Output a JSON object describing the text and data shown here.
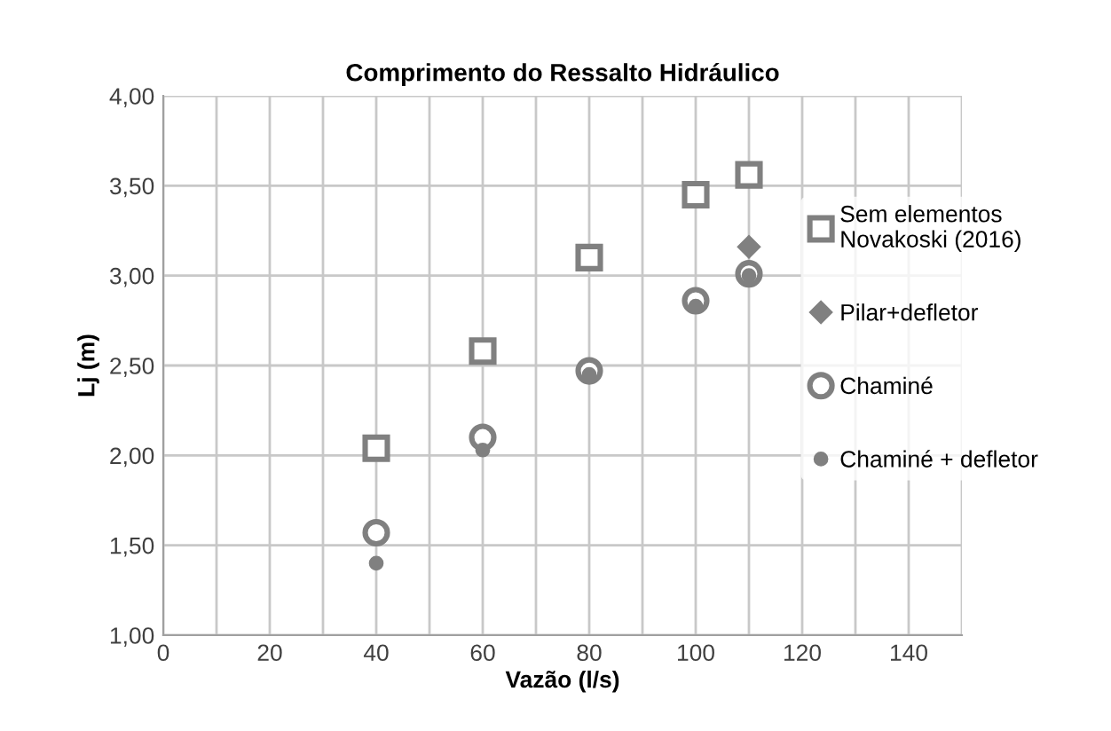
{
  "chart_data": {
    "type": "scatter",
    "title": "Comprimento do Ressalto Hidráulico",
    "xlabel": "Vazão (l/s)",
    "ylabel": "Lj (m)",
    "x": [
      40,
      60,
      80,
      100,
      110
    ],
    "series": [
      {
        "name": "Sem elementos\nNovakoski (2016)",
        "color": "#808080",
        "marker": "square",
        "values": [
          2.04,
          2.58,
          3.1,
          3.45,
          3.56
        ]
      },
      {
        "name": "Pilar+defletor",
        "color": "#808080",
        "marker": "diamond",
        "values": [
          null,
          null,
          null,
          null,
          3.16
        ]
      },
      {
        "name": "Chaminé",
        "color": "#808080",
        "marker": "circle",
        "values": [
          1.57,
          2.1,
          2.47,
          2.86,
          3.01
        ]
      },
      {
        "name": "Chaminé + defletor",
        "color": "#808080",
        "marker": "circle",
        "values": [
          1.4,
          2.03,
          2.45,
          2.83,
          3.0
        ]
      }
    ],
    "xlim": [
      0,
      150
    ],
    "xticks": [
      0,
      {
        "value": 10,
        "label": null
      },
      20,
      {
        "value": 30,
        "label": null
      },
      40,
      {
        "value": 50,
        "label": null
      },
      60,
      {
        "value": 70,
        "label": null
      },
      80,
      {
        "value": 90,
        "label": null
      },
      100,
      {
        "value": 110,
        "label": null
      },
      120,
      {
        "value": 130,
        "label": null
      },
      140,
      {
        "value": 150,
        "label": null
      }
    ],
    "ylim": [
      1,
      4
    ],
    "yticks": [
      {
        "value": 1,
        "label": "1,00"
      },
      {
        "value": 1.5,
        "label": "1,50"
      },
      {
        "value": 2,
        "label": "2,00"
      },
      {
        "value": 2.5,
        "label": "2,50"
      },
      {
        "value": 3,
        "label": "3,00"
      },
      {
        "value": 3.5,
        "label": "3,50"
      },
      {
        "value": 4,
        "label": "4,00"
      }
    ],
    "grid": true,
    "legend": "right"
  }
}
